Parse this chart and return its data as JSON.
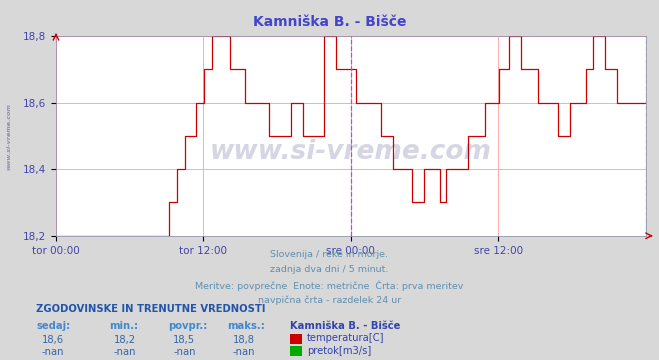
{
  "title": "Kamniška B. - Bišče",
  "title_color": "#4444cc",
  "bg_color": "#d8d8d8",
  "plot_bg_color": "#ffffff",
  "grid_color": "#ffaaaa",
  "line_color": "#cc0000",
  "vline_color": "#cc44cc",
  "tick_label_color": "#4444aa",
  "ylim": [
    18.2,
    18.8
  ],
  "yticks": [
    18.2,
    18.4,
    18.6,
    18.8
  ],
  "xtick_labels": [
    "tor 00:00",
    "tor 12:00",
    "sre 00:00",
    "sre 12:00"
  ],
  "xtick_positions": [
    0.0,
    0.25,
    0.5,
    0.75
  ],
  "vline_positions": [
    0.5,
    1.0
  ],
  "watermark": "www.si-vreme.com",
  "watermark_color": "#1a1a6e",
  "watermark_alpha": 0.18,
  "side_watermark": "www.si-vreme.com",
  "subtitle_lines": [
    "Slovenija / reke in morje.",
    "zadnja dva dni / 5 minut.",
    "Meritve: povprečne  Enote: metrične  Črta: prva meritev",
    "navpična črta - razdelek 24 ur"
  ],
  "subtitle_color": "#6090b0",
  "table_header": "ZGODOVINSKE IN TRENUTNE VREDNOSTI",
  "table_header_color": "#2255aa",
  "col_headers": [
    "sedaj:",
    "min.:",
    "povpr.:",
    "maks.:"
  ],
  "col_header_color": "#4488cc",
  "row1_values": [
    "18,6",
    "18,2",
    "18,5",
    "18,8"
  ],
  "row2_values": [
    "-nan",
    "-nan",
    "-nan",
    "-nan"
  ],
  "value_color": "#3366aa",
  "legend_title": "Kamniška B. - Bišče",
  "legend_color": "#3344aa",
  "legend_items": [
    {
      "label": "temperatura[C]",
      "color": "#cc0000"
    },
    {
      "label": "pretok[m3/s]",
      "color": "#00aa00"
    }
  ],
  "temperature_data": [
    [
      0.0,
      18.2
    ],
    [
      0.188,
      18.2
    ],
    [
      0.191,
      18.3
    ],
    [
      0.205,
      18.4
    ],
    [
      0.218,
      18.5
    ],
    [
      0.238,
      18.6
    ],
    [
      0.251,
      18.7
    ],
    [
      0.265,
      18.8
    ],
    [
      0.292,
      18.8
    ],
    [
      0.295,
      18.7
    ],
    [
      0.318,
      18.7
    ],
    [
      0.321,
      18.6
    ],
    [
      0.358,
      18.6
    ],
    [
      0.361,
      18.5
    ],
    [
      0.395,
      18.5
    ],
    [
      0.398,
      18.6
    ],
    [
      0.415,
      18.6
    ],
    [
      0.418,
      18.5
    ],
    [
      0.451,
      18.5
    ],
    [
      0.454,
      18.8
    ],
    [
      0.471,
      18.8
    ],
    [
      0.474,
      18.7
    ],
    [
      0.505,
      18.7
    ],
    [
      0.508,
      18.6
    ],
    [
      0.548,
      18.6
    ],
    [
      0.551,
      18.5
    ],
    [
      0.568,
      18.5
    ],
    [
      0.571,
      18.4
    ],
    [
      0.601,
      18.4
    ],
    [
      0.604,
      18.3
    ],
    [
      0.621,
      18.3
    ],
    [
      0.624,
      18.4
    ],
    [
      0.648,
      18.4
    ],
    [
      0.651,
      18.3
    ],
    [
      0.658,
      18.3
    ],
    [
      0.661,
      18.4
    ],
    [
      0.695,
      18.4
    ],
    [
      0.698,
      18.5
    ],
    [
      0.725,
      18.5
    ],
    [
      0.728,
      18.6
    ],
    [
      0.748,
      18.6
    ],
    [
      0.751,
      18.7
    ],
    [
      0.765,
      18.7
    ],
    [
      0.768,
      18.8
    ],
    [
      0.785,
      18.8
    ],
    [
      0.788,
      18.7
    ],
    [
      0.815,
      18.7
    ],
    [
      0.818,
      18.6
    ],
    [
      0.848,
      18.6
    ],
    [
      0.851,
      18.5
    ],
    [
      0.868,
      18.5
    ],
    [
      0.871,
      18.6
    ],
    [
      0.895,
      18.6
    ],
    [
      0.898,
      18.7
    ],
    [
      0.908,
      18.7
    ],
    [
      0.911,
      18.8
    ],
    [
      0.928,
      18.8
    ],
    [
      0.931,
      18.7
    ],
    [
      0.948,
      18.7
    ],
    [
      0.951,
      18.6
    ],
    [
      1.0,
      18.6
    ]
  ]
}
